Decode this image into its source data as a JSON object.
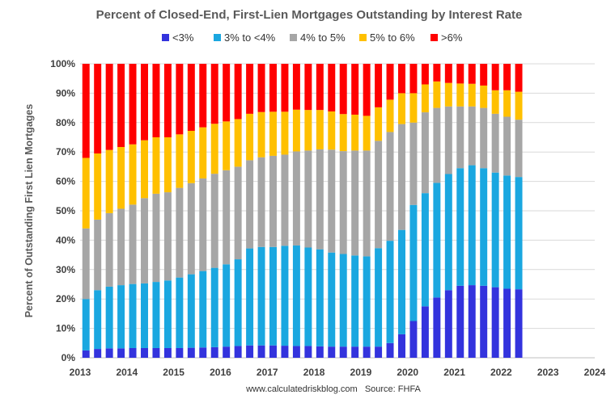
{
  "chart_data": {
    "type": "bar",
    "stacked": true,
    "title": "Percent of Closed-End, First-Lien Mortgages Outstanding by Interest Rate",
    "ylabel": "Percent of Outstanding First Lien Mortgages",
    "xlabel": "",
    "source": "www.calculatedriskblog.com   Source: FHFA",
    "ylim": [
      0,
      100
    ],
    "yticks": [
      "0%",
      "10%",
      "20%",
      "30%",
      "40%",
      "50%",
      "60%",
      "70%",
      "80%",
      "90%",
      "100%"
    ],
    "xlim": [
      2013,
      2024
    ],
    "xticks": [
      "2013",
      "2014",
      "2015",
      "2016",
      "2017",
      "2018",
      "2019",
      "2020",
      "2021",
      "2022",
      "2023",
      "2024"
    ],
    "legend_position": "top",
    "grid": true,
    "x_start": "2013 Q1",
    "x_step": "quarter",
    "series": [
      {
        "name": "<3%",
        "color": "#3333dd",
        "values": [
          2.5,
          3,
          3.2,
          3.2,
          3.3,
          3.3,
          3.3,
          3.3,
          3.3,
          3.4,
          3.5,
          3.6,
          3.8,
          4,
          4.2,
          4.2,
          4.2,
          4.1,
          4,
          4,
          3.9,
          3.8,
          3.8,
          3.8,
          3.8,
          3.8,
          5,
          8,
          12.5,
          17.5,
          20.5,
          23,
          24.5,
          24.7,
          24.5,
          24,
          23.5,
          23.3
        ]
      },
      {
        "name": "3% to <4%",
        "color": "#1aa7e0",
        "values": [
          17.5,
          20,
          21,
          21.5,
          21.8,
          22,
          22.5,
          23,
          24,
          25,
          26,
          27,
          28,
          29.5,
          33,
          33.5,
          33.5,
          34,
          34.2,
          33.5,
          33,
          32,
          31.5,
          31,
          30.7,
          33.5,
          34.8,
          35.5,
          39.5,
          38.5,
          39,
          39.5,
          40,
          40.8,
          40,
          39,
          38.5,
          38.2
        ]
      },
      {
        "name": "4% to 5%",
        "color": "#a6a6a6",
        "values": [
          24,
          24,
          25,
          26,
          27,
          29,
          30,
          30,
          30.5,
          31,
          31.5,
          32,
          32,
          31.5,
          30,
          30.5,
          31,
          31,
          32,
          33,
          34,
          35,
          35,
          35.7,
          36,
          36.5,
          37,
          36,
          28,
          27.5,
          25.5,
          23,
          21,
          20,
          20.5,
          20,
          20,
          19.5
        ]
      },
      {
        "name": "5% to 6%",
        "color": "#ffc000",
        "values": [
          24,
          22.5,
          21.5,
          21,
          20.5,
          19.7,
          19.2,
          18.7,
          18.2,
          17.8,
          17.4,
          17,
          16.6,
          16.2,
          15.8,
          15.4,
          15,
          14.6,
          14.2,
          13.8,
          13.4,
          13,
          12.6,
          12.2,
          11.8,
          11.4,
          11,
          10.5,
          10,
          9.5,
          9,
          8,
          7.8,
          7.7,
          7.6,
          8,
          9,
          9.5
        ]
      },
      {
        "name": ">6%",
        "color": "#ff0000",
        "values": [
          32,
          30.5,
          29.3,
          28.3,
          27.4,
          26,
          25,
          25,
          24,
          22.8,
          21.6,
          20.4,
          19.6,
          18.8,
          17,
          16.4,
          16.3,
          16.3,
          15.6,
          15.7,
          15.7,
          16.2,
          17.1,
          17.3,
          17.7,
          14.8,
          12.2,
          10,
          10,
          7,
          6,
          6.5,
          6.7,
          6.8,
          7.4,
          9,
          9,
          9.5
        ]
      }
    ]
  }
}
